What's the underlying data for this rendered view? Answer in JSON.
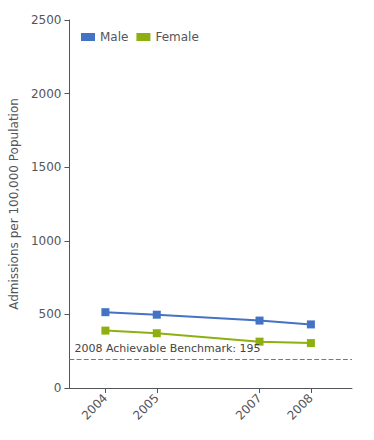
{
  "chart_data": {
    "type": "line",
    "x": [
      2004,
      2005,
      2007,
      2008
    ],
    "series": [
      {
        "name": "Male",
        "color": "#4472c4",
        "values": [
          515,
          498,
          458,
          432
        ]
      },
      {
        "name": "Female",
        "color": "#8db010",
        "values": [
          390,
          372,
          315,
          305
        ]
      }
    ],
    "xlim": [
      2003.3,
      2008.8
    ],
    "xticks": [
      2004,
      2005,
      2007,
      2008
    ],
    "ylabel": "Admissions per 100,000 Population",
    "ylim": [
      0,
      2500
    ],
    "yticks": [
      0,
      500,
      1000,
      1500,
      2000,
      2500
    ],
    "grid": false,
    "legend": "upper left",
    "marker": "square",
    "reference_lines": [
      {
        "y": 195,
        "label": "2008 Achievable Benchmark: 195"
      }
    ]
  }
}
